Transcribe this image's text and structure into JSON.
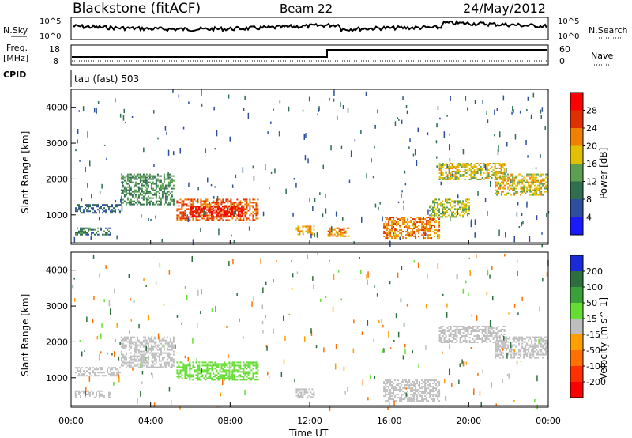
{
  "header": {
    "site": "Blackstone (fitACF)",
    "beam": "Beam 22",
    "date": "24/May/2012"
  },
  "top_panels": {
    "nsky_label": "N.Sky",
    "nsky_ticks": [
      "10^5",
      "10^0"
    ],
    "nsearch_label": "N.Search",
    "nsearch_ticks": [
      "10^5",
      "10^0"
    ],
    "freq_label": "Freq.",
    "freq_unit": "[MHz]",
    "freq_ticks": [
      "18",
      "8"
    ],
    "nave_label": "Nave",
    "nave_ticks": [
      "60",
      "0"
    ],
    "cpid_label": "CPID",
    "cpid_text": "tau (fast) 503"
  },
  "x_axis": {
    "label": "Time UT",
    "ticks": [
      "00:00",
      "04:00",
      "08:00",
      "12:00",
      "16:00",
      "20:00",
      "00:00"
    ]
  },
  "chart_data": [
    {
      "type": "heatmap",
      "title": "",
      "xlabel": "Time UT",
      "ylabel": "Slant Range [km]",
      "x": [
        "00:00",
        "04:00",
        "08:00",
        "12:00",
        "16:00",
        "20:00",
        "00:00"
      ],
      "xlim": [
        0,
        24
      ],
      "y_ticks": [
        1000,
        2000,
        3000,
        4000
      ],
      "ylim": [
        180,
        4500
      ],
      "colorbar": {
        "label": "Power [dB]",
        "ticks": [
          "4",
          "8",
          "12",
          "16",
          "20",
          "24",
          "28"
        ],
        "colors": [
          "#1a1aff",
          "#2e4fa0",
          "#2f6f4f",
          "#5aa050",
          "#e0c000",
          "#f08000",
          "#e03000",
          "#ff0000"
        ]
      },
      "echo_regions": [
        {
          "t_start": 0.2,
          "t_end": 2.5,
          "r_min": 1050,
          "r_max": 1300,
          "value": 8
        },
        {
          "t_start": 0.2,
          "t_end": 2.0,
          "r_min": 450,
          "r_max": 650,
          "value": 10
        },
        {
          "t_start": 2.5,
          "t_end": 5.2,
          "r_min": 1300,
          "r_max": 2150,
          "value": 12
        },
        {
          "t_start": 5.3,
          "t_end": 9.4,
          "r_min": 850,
          "r_max": 1450,
          "value": 24
        },
        {
          "t_start": 6.0,
          "t_end": 8.6,
          "r_min": 950,
          "r_max": 1250,
          "value": 28
        },
        {
          "t_start": 11.3,
          "t_end": 12.2,
          "r_min": 450,
          "r_max": 700,
          "value": 20
        },
        {
          "t_start": 12.9,
          "t_end": 14.0,
          "r_min": 400,
          "r_max": 650,
          "value": 22
        },
        {
          "t_start": 15.7,
          "t_end": 18.5,
          "r_min": 350,
          "r_max": 950,
          "value": 22
        },
        {
          "t_start": 18.0,
          "t_end": 20.0,
          "r_min": 950,
          "r_max": 1450,
          "value": 16
        },
        {
          "t_start": 18.5,
          "t_end": 21.8,
          "r_min": 2000,
          "r_max": 2450,
          "value": 18
        },
        {
          "t_start": 21.3,
          "t_end": 24.0,
          "r_min": 1550,
          "r_max": 2150,
          "value": 18
        }
      ]
    },
    {
      "type": "heatmap",
      "title": "",
      "xlabel": "Time UT",
      "ylabel": "Slant Range [km]",
      "x": [
        "00:00",
        "04:00",
        "08:00",
        "12:00",
        "16:00",
        "20:00",
        "00:00"
      ],
      "xlim": [
        0,
        24
      ],
      "y_ticks": [
        1000,
        2000,
        3000,
        4000
      ],
      "ylim": [
        180,
        4500
      ],
      "colorbar": {
        "label": "Velocity [m s^-1]",
        "ticks": [
          "200",
          "100",
          "50",
          "15",
          "-15",
          "-50",
          "-100",
          "-200"
        ],
        "colors": [
          "#1a2ad8",
          "#2e6f3f",
          "#3aa03a",
          "#66dd33",
          "#bebebe",
          "#ffa000",
          "#ff7000",
          "#ff3000",
          "#ff0000"
        ]
      },
      "echo_regions": [
        {
          "t_start": 0.2,
          "t_end": 2.5,
          "r_min": 1050,
          "r_max": 1300,
          "value": 0
        },
        {
          "t_start": 0.2,
          "t_end": 2.0,
          "r_min": 450,
          "r_max": 650,
          "value": 0
        },
        {
          "t_start": 2.5,
          "t_end": 5.2,
          "r_min": 1300,
          "r_max": 2150,
          "value": 0
        },
        {
          "t_start": 5.3,
          "t_end": 9.4,
          "r_min": 950,
          "r_max": 1450,
          "value": 60
        },
        {
          "t_start": 11.3,
          "t_end": 12.2,
          "r_min": 450,
          "r_max": 700,
          "value": 0
        },
        {
          "t_start": 15.7,
          "t_end": 18.5,
          "r_min": 350,
          "r_max": 950,
          "value": 0
        },
        {
          "t_start": 18.5,
          "t_end": 21.8,
          "r_min": 2000,
          "r_max": 2450,
          "value": 0
        },
        {
          "t_start": 21.3,
          "t_end": 24.0,
          "r_min": 1550,
          "r_max": 2150,
          "value": 0
        }
      ]
    }
  ]
}
